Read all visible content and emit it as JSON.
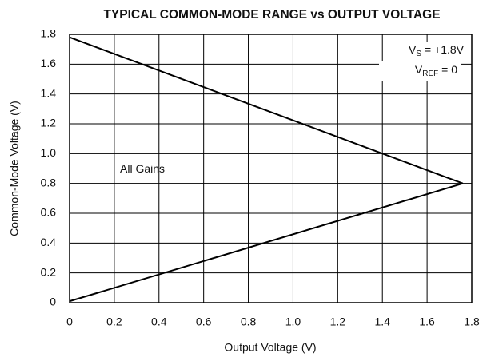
{
  "chart_data": {
    "type": "line",
    "title": "TYPICAL COMMON-MODE RANGE vs OUTPUT VOLTAGE",
    "x_label": "Output Voltage (V)",
    "y_label": "Common-Mode Voltage (V)",
    "series": [
      {
        "color": "#000000",
        "x": [
          0,
          1.76
        ],
        "values": [
          1.78,
          0.8
        ]
      },
      {
        "color": "#000000",
        "x": [
          0,
          1.76
        ],
        "values": [
          0.01,
          0.8
        ]
      }
    ],
    "annotations": [
      {
        "text": "V",
        "sub": "S",
        "rest": " = +1.8V"
      },
      {
        "text": "V",
        "sub": "REF",
        "rest": " = 0"
      },
      {
        "text": "All Gains"
      }
    ],
    "xlim": [
      0,
      1.8
    ],
    "xticks": [
      0,
      0.2,
      0.4,
      0.6,
      0.8,
      {
        "value": 1,
        "label": "1.0"
      },
      1.2,
      1.4,
      1.6,
      1.8
    ],
    "ylim": [
      0,
      1.8
    ],
    "yticks": [
      0,
      0.2,
      0.4,
      0.6,
      0.8,
      {
        "value": 1,
        "label": "1.0"
      },
      1.2,
      1.4,
      1.6,
      1.8
    ],
    "grid": true
  }
}
